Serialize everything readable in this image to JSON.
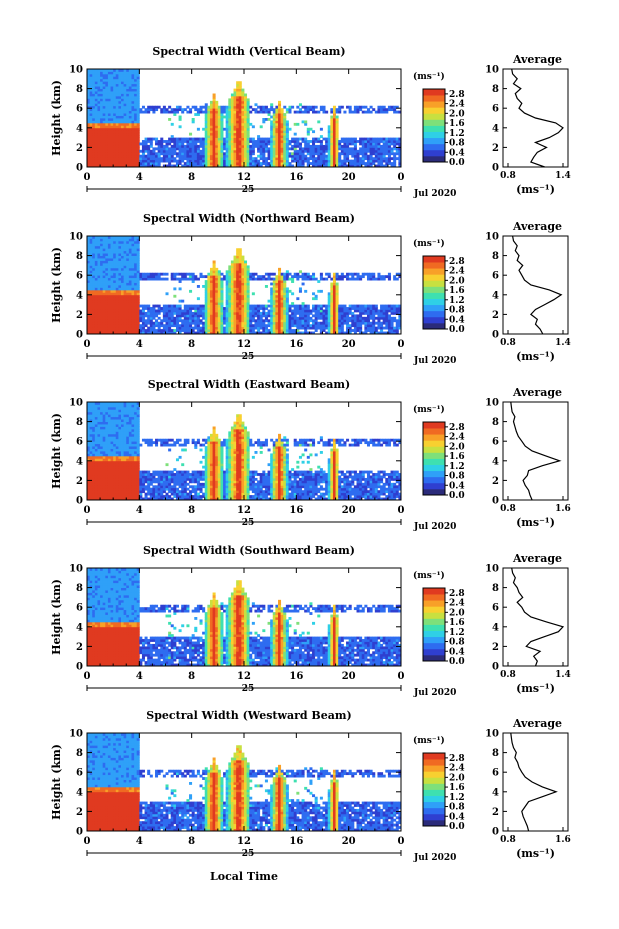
{
  "figure": {
    "xlabel": "Local Time",
    "date_label": "Jul 2020",
    "day_label": "25",
    "ylabel": "Height (km)"
  },
  "chart_data": [
    {
      "type": "heatmap",
      "title": "Spectral Width (Vertical Beam)",
      "xticks": [
        "0",
        "4",
        "8",
        "12",
        "16",
        "20",
        "0"
      ],
      "yticks": [
        "0",
        "2",
        "4",
        "6",
        "8",
        "10"
      ],
      "xlim": [
        0,
        24
      ],
      "ylim": [
        0,
        10
      ],
      "colorbar": {
        "unit": "(ms⁻¹)",
        "ticks": [
          "0.0",
          "0.4",
          "0.8",
          "1.2",
          "1.6",
          "2.0",
          "2.4",
          "2.8"
        ],
        "range": [
          0,
          3.0
        ]
      },
      "profile": {
        "title": "Average",
        "xlabel": "(ms⁻¹)",
        "xticks": [
          "0.8",
          "1.4"
        ],
        "xlim": [
          0.8,
          1.4
        ],
        "height_km": [
          0,
          0.5,
          1,
          1.5,
          2,
          2.5,
          3,
          3.5,
          4,
          4.5,
          5,
          5.5,
          6,
          6.5,
          7,
          7.5,
          8,
          8.5,
          9,
          9.5,
          10
        ],
        "values": [
          1.2,
          1.05,
          1.08,
          1.12,
          1.22,
          1.1,
          1.25,
          1.35,
          1.4,
          1.32,
          1.1,
          0.98,
          0.92,
          0.95,
          0.9,
          0.88,
          0.94,
          0.86,
          0.9,
          0.85,
          0.84
        ]
      }
    },
    {
      "type": "heatmap",
      "title": "Spectral Width (Northward Beam)",
      "xticks": [
        "0",
        "4",
        "8",
        "12",
        "16",
        "20",
        "0"
      ],
      "yticks": [
        "0",
        "2",
        "4",
        "6",
        "8",
        "10"
      ],
      "xlim": [
        0,
        24
      ],
      "ylim": [
        0,
        10
      ],
      "colorbar": {
        "unit": "(ms⁻¹)",
        "ticks": [
          "0.0",
          "0.4",
          "0.8",
          "1.2",
          "1.6",
          "2.0",
          "2.4",
          "2.8"
        ],
        "range": [
          0,
          3.0
        ]
      },
      "profile": {
        "title": "Average",
        "xlabel": "(ms⁻¹)",
        "xticks": [
          "0.8",
          "1.4"
        ],
        "xlim": [
          0.8,
          1.4
        ],
        "height_km": [
          0,
          0.5,
          1,
          1.5,
          2,
          2.5,
          3,
          3.5,
          4,
          4.5,
          5,
          5.5,
          6,
          6.5,
          7,
          7.5,
          8,
          8.5,
          9,
          9.5,
          10
        ],
        "values": [
          1.18,
          1.15,
          1.1,
          1.12,
          1.05,
          1.1,
          1.2,
          1.3,
          1.38,
          1.25,
          1.05,
          0.98,
          0.95,
          0.92,
          0.96,
          0.9,
          0.92,
          0.88,
          0.9,
          0.86,
          0.85
        ]
      }
    },
    {
      "type": "heatmap",
      "title": "Spectral Width (Eastward Beam)",
      "xticks": [
        "0",
        "4",
        "8",
        "12",
        "16",
        "20",
        "0"
      ],
      "yticks": [
        "0",
        "2",
        "4",
        "6",
        "8",
        "10"
      ],
      "xlim": [
        0,
        24
      ],
      "ylim": [
        0,
        10
      ],
      "colorbar": {
        "unit": "(ms⁻¹)",
        "ticks": [
          "0.0",
          "0.4",
          "0.8",
          "1.2",
          "1.6",
          "2.0",
          "2.4",
          "2.8"
        ],
        "range": [
          0,
          3.0
        ]
      },
      "profile": {
        "title": "Average",
        "xlabel": "(ms⁻¹)",
        "xticks": [
          "0.8",
          "1.6"
        ],
        "xlim": [
          0.8,
          1.6
        ],
        "height_km": [
          0,
          0.5,
          1,
          1.5,
          2,
          2.5,
          3,
          3.5,
          4,
          4.5,
          5,
          5.5,
          6,
          6.5,
          7,
          7.5,
          8,
          8.5,
          9,
          9.5,
          10
        ],
        "values": [
          1.15,
          1.12,
          1.1,
          1.05,
          1.02,
          1.08,
          1.1,
          1.3,
          1.55,
          1.35,
          1.15,
          1.05,
          1.0,
          0.95,
          0.92,
          0.9,
          0.88,
          0.9,
          0.86,
          0.85,
          0.84
        ]
      }
    },
    {
      "type": "heatmap",
      "title": "Spectral Width (Southward Beam)",
      "xticks": [
        "0",
        "4",
        "8",
        "12",
        "16",
        "20",
        "0"
      ],
      "yticks": [
        "0",
        "2",
        "4",
        "6",
        "8",
        "10"
      ],
      "xlim": [
        0,
        24
      ],
      "ylim": [
        0,
        10
      ],
      "colorbar": {
        "unit": "(ms⁻¹)",
        "ticks": [
          "0.0",
          "0.4",
          "0.8",
          "1.2",
          "1.6",
          "2.0",
          "2.4",
          "2.8"
        ],
        "range": [
          0,
          3.0
        ]
      },
      "profile": {
        "title": "Average",
        "xlabel": "(ms⁻¹)",
        "xticks": [
          "0.8",
          "1.4"
        ],
        "xlim": [
          0.8,
          1.4
        ],
        "height_km": [
          0,
          0.5,
          1,
          1.5,
          2,
          2.5,
          3,
          3.5,
          4,
          4.5,
          5,
          5.5,
          6,
          6.5,
          7,
          7.5,
          8,
          8.5,
          9,
          9.5,
          10
        ],
        "values": [
          1.1,
          1.12,
          1.08,
          1.15,
          1.0,
          1.05,
          1.2,
          1.35,
          1.4,
          1.22,
          1.05,
          0.98,
          0.95,
          0.9,
          0.96,
          0.92,
          0.9,
          0.86,
          0.88,
          0.85,
          0.84
        ]
      }
    },
    {
      "type": "heatmap",
      "title": "Spectral Width (Westward Beam)",
      "xticks": [
        "0",
        "4",
        "8",
        "12",
        "16",
        "20",
        "0"
      ],
      "yticks": [
        "0",
        "2",
        "4",
        "6",
        "8",
        "10"
      ],
      "xlim": [
        0,
        24
      ],
      "ylim": [
        0,
        10
      ],
      "colorbar": {
        "unit": "(ms⁻¹)",
        "ticks": [
          "0.0",
          "0.4",
          "0.8",
          "1.2",
          "1.6",
          "2.0",
          "2.4",
          "2.8"
        ],
        "range": [
          0,
          3.0
        ]
      },
      "profile": {
        "title": "Average",
        "xlabel": "(ms⁻¹)",
        "xticks": [
          "0.8",
          "1.6"
        ],
        "xlim": [
          0.8,
          1.6
        ],
        "height_km": [
          0,
          0.5,
          1,
          1.5,
          2,
          2.5,
          3,
          3.5,
          4,
          4.5,
          5,
          5.5,
          6,
          6.5,
          7,
          7.5,
          8,
          8.5,
          9,
          9.5,
          10
        ],
        "values": [
          1.1,
          1.08,
          1.05,
          1.02,
          1.0,
          1.05,
          1.1,
          1.3,
          1.5,
          1.3,
          1.15,
          1.05,
          1.0,
          0.96,
          0.94,
          0.9,
          0.92,
          0.88,
          0.86,
          0.85,
          0.84
        ]
      }
    }
  ],
  "colors": {
    "scale": [
      "#2b2b7a",
      "#2f3fd0",
      "#2e6cf0",
      "#2fa0f8",
      "#2fd0e6",
      "#3ee0b0",
      "#7ee07a",
      "#c8e040",
      "#f8d030",
      "#f8a028",
      "#f06a22",
      "#e03a20"
    ]
  }
}
